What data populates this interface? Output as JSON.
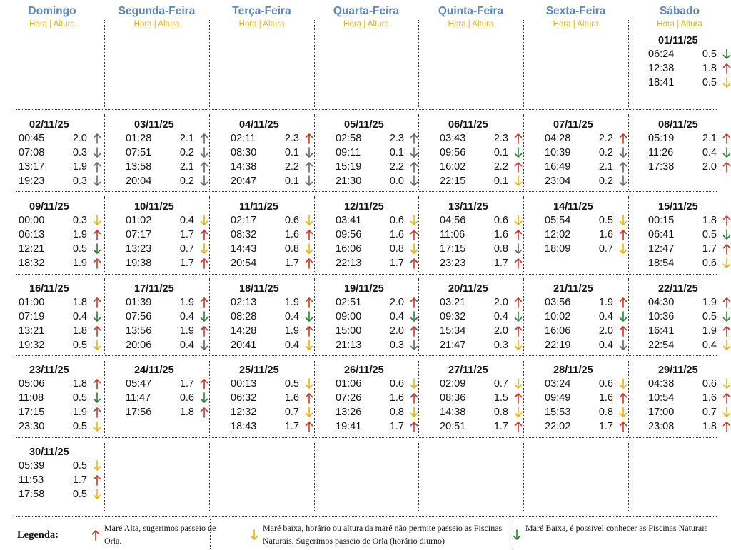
{
  "colors": {
    "header_day": "#5b86b8",
    "header_sub": "#e3b21c",
    "up_red": "#c0392b",
    "down_green": "#2e7d32",
    "down_yellow": "#e6b21c",
    "arrow_gray": "#666666"
  },
  "headers": [
    {
      "day": "Domingo",
      "sub": "Hora | Altura"
    },
    {
      "day": "Segunda-Feira",
      "sub": "Hora | Altura"
    },
    {
      "day": "Terça-Feira",
      "sub": "Hora | Altura"
    },
    {
      "day": "Quarta-Feira",
      "sub": "Hora | Altura"
    },
    {
      "day": "Quinta-Feira",
      "sub": "Hora | Altura"
    },
    {
      "day": "Sexta-Feira",
      "sub": "Hora | Altura"
    },
    {
      "day": "Sábado",
      "sub": "Hora | Altura"
    }
  ],
  "weeks": [
    [
      null,
      null,
      null,
      null,
      null,
      null,
      {
        "date": "01/11/25",
        "tides": [
          [
            "06:24",
            "0.5",
            "down",
            "green"
          ],
          [
            "12:38",
            "1.8",
            "up",
            "red"
          ],
          [
            "18:41",
            "0.5",
            "down",
            "yellow"
          ]
        ]
      }
    ],
    [
      {
        "date": "02/11/25",
        "tides": [
          [
            "00:45",
            "2.0",
            "up",
            "gray"
          ],
          [
            "07:08",
            "0.3",
            "down",
            "gray"
          ],
          [
            "13:17",
            "1.9",
            "up",
            "gray"
          ],
          [
            "19:23",
            "0.3",
            "down",
            "gray"
          ]
        ]
      },
      {
        "date": "03/11/25",
        "tides": [
          [
            "01:28",
            "2.1",
            "up",
            "gray"
          ],
          [
            "07:51",
            "0.2",
            "down",
            "gray"
          ],
          [
            "13:58",
            "2.1",
            "up",
            "gray"
          ],
          [
            "20:04",
            "0.2",
            "down",
            "gray"
          ]
        ]
      },
      {
        "date": "04/11/25",
        "tides": [
          [
            "02:11",
            "2.3",
            "up",
            "red"
          ],
          [
            "08:30",
            "0.1",
            "down",
            "gray"
          ],
          [
            "14:38",
            "2.2",
            "up",
            "gray"
          ],
          [
            "20:47",
            "0.1",
            "down",
            "gray"
          ]
        ]
      },
      {
        "date": "05/11/25",
        "tides": [
          [
            "02:58",
            "2.3",
            "up",
            "gray"
          ],
          [
            "09:11",
            "0.1",
            "down",
            "gray"
          ],
          [
            "15:19",
            "2.2",
            "up",
            "gray"
          ],
          [
            "21:30",
            "0.0",
            "down",
            "gray"
          ]
        ]
      },
      {
        "date": "06/11/25",
        "tides": [
          [
            "03:43",
            "2.3",
            "up",
            "red"
          ],
          [
            "09:56",
            "0.1",
            "down",
            "green"
          ],
          [
            "16:02",
            "2.2",
            "up",
            "red"
          ],
          [
            "22:15",
            "0.1",
            "down",
            "yellow"
          ]
        ]
      },
      {
        "date": "07/11/25",
        "tides": [
          [
            "04:28",
            "2.2",
            "up",
            "red"
          ],
          [
            "10:39",
            "0.2",
            "down",
            "gray"
          ],
          [
            "16:49",
            "2.1",
            "up",
            "gray"
          ],
          [
            "23:04",
            "0.2",
            "down",
            "gray"
          ]
        ]
      },
      {
        "date": "08/11/25",
        "tides": [
          [
            "05:19",
            "2.1",
            "up",
            "red"
          ],
          [
            "11:26",
            "0.4",
            "down",
            "green"
          ],
          [
            "17:38",
            "2.0",
            "up",
            "red"
          ]
        ]
      }
    ],
    [
      {
        "date": "09/11/25",
        "tides": [
          [
            "00:00",
            "0.3",
            "down",
            "yellow"
          ],
          [
            "06:13",
            "1.9",
            "up",
            "red"
          ],
          [
            "12:21",
            "0.5",
            "down",
            "green"
          ],
          [
            "18:32",
            "1.9",
            "up",
            "red"
          ]
        ]
      },
      {
        "date": "10/11/25",
        "tides": [
          [
            "01:02",
            "0.4",
            "down",
            "yellow"
          ],
          [
            "07:17",
            "1.7",
            "up",
            "red"
          ],
          [
            "13:23",
            "0.7",
            "down",
            "yellow"
          ],
          [
            "19:38",
            "1.7",
            "up",
            "red"
          ]
        ]
      },
      {
        "date": "11/11/25",
        "tides": [
          [
            "02:17",
            "0.6",
            "down",
            "yellow"
          ],
          [
            "08:32",
            "1.6",
            "up",
            "red"
          ],
          [
            "14:43",
            "0.8",
            "down",
            "yellow"
          ],
          [
            "20:54",
            "1.7",
            "up",
            "red"
          ]
        ]
      },
      {
        "date": "12/11/25",
        "tides": [
          [
            "03:41",
            "0.6",
            "down",
            "yellow"
          ],
          [
            "09:56",
            "1.6",
            "up",
            "red"
          ],
          [
            "16:06",
            "0.8",
            "down",
            "yellow"
          ],
          [
            "22:13",
            "1.7",
            "up",
            "red"
          ]
        ]
      },
      {
        "date": "13/11/25",
        "tides": [
          [
            "04:56",
            "0.6",
            "down",
            "yellow"
          ],
          [
            "11:06",
            "1.6",
            "up",
            "red"
          ],
          [
            "17:15",
            "0.8",
            "down",
            "gray"
          ],
          [
            "23:23",
            "1.7",
            "up",
            "red"
          ]
        ]
      },
      {
        "date": "14/11/25",
        "tides": [
          [
            "05:54",
            "0.5",
            "down",
            "yellow"
          ],
          [
            "12:02",
            "1.6",
            "up",
            "red"
          ],
          [
            "18:09",
            "0.7",
            "down",
            "yellow"
          ]
        ]
      },
      {
        "date": "15/11/25",
        "tides": [
          [
            "00:15",
            "1.8",
            "up",
            "red"
          ],
          [
            "06:41",
            "0.5",
            "down",
            "green"
          ],
          [
            "12:47",
            "1.7",
            "up",
            "red"
          ],
          [
            "18:54",
            "0.6",
            "down",
            "yellow"
          ]
        ]
      }
    ],
    [
      {
        "date": "16/11/25",
        "tides": [
          [
            "01:00",
            "1.8",
            "up",
            "red"
          ],
          [
            "07:19",
            "0.4",
            "down",
            "green"
          ],
          [
            "13:21",
            "1.8",
            "up",
            "red"
          ],
          [
            "19:32",
            "0.5",
            "down",
            "yellow"
          ]
        ]
      },
      {
        "date": "17/11/25",
        "tides": [
          [
            "01:39",
            "1.9",
            "up",
            "red"
          ],
          [
            "07:56",
            "0.4",
            "down",
            "green"
          ],
          [
            "13:56",
            "1.9",
            "up",
            "red"
          ],
          [
            "20:06",
            "0.4",
            "down",
            "gray"
          ]
        ]
      },
      {
        "date": "18/11/25",
        "tides": [
          [
            "02:13",
            "1.9",
            "up",
            "red"
          ],
          [
            "08:28",
            "0.4",
            "down",
            "green"
          ],
          [
            "14:28",
            "1.9",
            "up",
            "red"
          ],
          [
            "20:41",
            "0.4",
            "down",
            "yellow"
          ]
        ]
      },
      {
        "date": "19/11/25",
        "tides": [
          [
            "02:51",
            "2.0",
            "up",
            "red"
          ],
          [
            "09:00",
            "0.4",
            "down",
            "green"
          ],
          [
            "15:00",
            "2.0",
            "up",
            "red"
          ],
          [
            "21:13",
            "0.3",
            "down",
            "gray"
          ]
        ]
      },
      {
        "date": "20/11/25",
        "tides": [
          [
            "03:21",
            "2.0",
            "up",
            "red"
          ],
          [
            "09:32",
            "0.4",
            "down",
            "green"
          ],
          [
            "15:34",
            "2.0",
            "up",
            "red"
          ],
          [
            "21:47",
            "0.3",
            "down",
            "yellow"
          ]
        ]
      },
      {
        "date": "21/11/25",
        "tides": [
          [
            "03:56",
            "1.9",
            "up",
            "red"
          ],
          [
            "10:02",
            "0.4",
            "down",
            "green"
          ],
          [
            "16:06",
            "2.0",
            "up",
            "red"
          ],
          [
            "22:19",
            "0.4",
            "down",
            "gray"
          ]
        ]
      },
      {
        "date": "22/11/25",
        "tides": [
          [
            "04:30",
            "1.9",
            "up",
            "red"
          ],
          [
            "10:36",
            "0.5",
            "down",
            "green"
          ],
          [
            "16:41",
            "1.9",
            "up",
            "red"
          ],
          [
            "22:54",
            "0.4",
            "down",
            "yellow"
          ]
        ]
      }
    ],
    [
      {
        "date": "23/11/25",
        "tides": [
          [
            "05:06",
            "1.8",
            "up",
            "red"
          ],
          [
            "11:08",
            "0.5",
            "down",
            "green"
          ],
          [
            "17:15",
            "1.9",
            "up",
            "red"
          ],
          [
            "23:30",
            "0.5",
            "down",
            "yellow"
          ]
        ]
      },
      {
        "date": "24/11/25",
        "tides": [
          [
            "05:47",
            "1.7",
            "up",
            "red"
          ],
          [
            "11:47",
            "0.6",
            "down",
            "green"
          ],
          [
            "17:56",
            "1.8",
            "up",
            "red"
          ]
        ]
      },
      {
        "date": "25/11/25",
        "tides": [
          [
            "00:13",
            "0.5",
            "down",
            "yellow"
          ],
          [
            "06:32",
            "1.6",
            "up",
            "red"
          ],
          [
            "12:32",
            "0.7",
            "down",
            "yellow"
          ],
          [
            "18:43",
            "1.7",
            "up",
            "red"
          ]
        ]
      },
      {
        "date": "26/11/25",
        "tides": [
          [
            "01:06",
            "0.6",
            "down",
            "yellow"
          ],
          [
            "07:26",
            "1.6",
            "up",
            "red"
          ],
          [
            "13:26",
            "0.8",
            "down",
            "yellow"
          ],
          [
            "19:41",
            "1.7",
            "up",
            "red"
          ]
        ]
      },
      {
        "date": "27/11/25",
        "tides": [
          [
            "02:09",
            "0.7",
            "down",
            "yellow"
          ],
          [
            "08:36",
            "1.5",
            "up",
            "red"
          ],
          [
            "14:38",
            "0.8",
            "down",
            "yellow"
          ],
          [
            "20:51",
            "1.7",
            "up",
            "red"
          ]
        ]
      },
      {
        "date": "28/11/25",
        "tides": [
          [
            "03:24",
            "0.6",
            "down",
            "yellow"
          ],
          [
            "09:49",
            "1.6",
            "up",
            "red"
          ],
          [
            "15:53",
            "0.8",
            "down",
            "yellow"
          ],
          [
            "22:02",
            "1.7",
            "up",
            "red"
          ]
        ]
      },
      {
        "date": "29/11/25",
        "tides": [
          [
            "04:38",
            "0.6",
            "down",
            "yellow"
          ],
          [
            "10:54",
            "1.6",
            "up",
            "red"
          ],
          [
            "17:00",
            "0.7",
            "down",
            "yellow"
          ],
          [
            "23:08",
            "1.8",
            "up",
            "red"
          ]
        ]
      }
    ],
    [
      {
        "date": "30/11/25",
        "tides": [
          [
            "05:39",
            "0.5",
            "down",
            "yellow"
          ],
          [
            "11:53",
            "1.7",
            "up",
            "red"
          ],
          [
            "17:58",
            "0.5",
            "down",
            "yellow"
          ]
        ]
      },
      null,
      null,
      null,
      null,
      null,
      null
    ]
  ],
  "legend": {
    "title": "Legenda:",
    "items": [
      {
        "dir": "up",
        "color": "red",
        "text": "Maré Alta, sugerimos passeio de Orla."
      },
      {
        "dir": "down",
        "color": "yellow",
        "text": "Maré baixa, horário ou altura da maré não permite passeio as Piscinas Naturais. Sugerimos passeio de Orla (horário diurno)"
      },
      {
        "dir": "down",
        "color": "green",
        "text": "Maré Baixa, é possivel conhecer as Piscinas Naturais"
      }
    ]
  }
}
